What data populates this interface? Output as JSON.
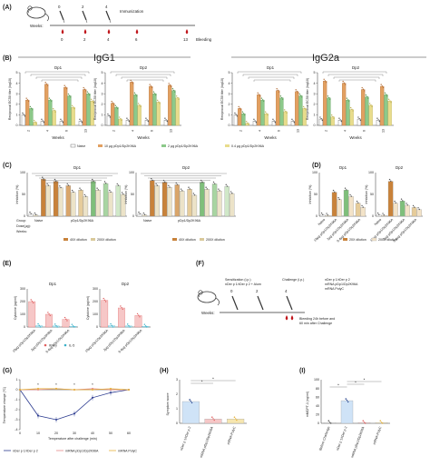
{
  "panelA": {
    "letter": "(A)",
    "weeks_label": "Weeks:",
    "immunization_label": "Immunization",
    "bleeding_label": "Bleeding",
    "immunization_weeks": [
      "0",
      "2",
      "4"
    ],
    "bleeding_weeks": [
      "0",
      "2",
      "4",
      "6",
      "13"
    ]
  },
  "panelB": {
    "letter": "(B)",
    "igg1_title": "IgG1",
    "igg2a_title": "IgG2a",
    "ylabel": "Reciprocal EC50 titer (log10)",
    "xlabel": "Weeks",
    "weeks": [
      "2",
      "4",
      "6",
      "13"
    ],
    "legend": [
      "Naive",
      "10 µg pDp1/Dp2K96A",
      "2 µg pDp1/Dp2K96A",
      "0.4 µg pDp1/Dp2K96A"
    ],
    "subplots": [
      {
        "title": "Dp1",
        "values": [
          [
            1.0,
            2.4,
            1.6,
            0.3
          ],
          [
            0.4,
            3.9,
            2.4,
            1.4
          ],
          [
            0.4,
            3.6,
            2.8,
            1.7
          ],
          [
            0.4,
            3.4,
            3.0,
            2.3
          ]
        ]
      },
      {
        "title": "Dp2",
        "values": [
          [
            0.9,
            2.1,
            1.7,
            0.6
          ],
          [
            0.5,
            4.1,
            2.9,
            1.9
          ],
          [
            0.5,
            3.7,
            3.0,
            2.2
          ],
          [
            0.5,
            3.8,
            3.3,
            2.6
          ]
        ]
      },
      {
        "title": "Dp1",
        "values": [
          [
            1.0,
            1.6,
            1.1,
            0.2
          ],
          [
            0.4,
            2.9,
            2.4,
            1.1
          ],
          [
            0.4,
            3.3,
            2.6,
            1.3
          ],
          [
            0.4,
            3.2,
            2.8,
            1.6
          ]
        ]
      },
      {
        "title": "Dp2",
        "values": [
          [
            0.6,
            4.2,
            2.6,
            0.8
          ],
          [
            0.5,
            4.0,
            2.4,
            1.5
          ],
          [
            0.6,
            3.4,
            2.7,
            1.9
          ],
          [
            0.5,
            3.7,
            2.9,
            2.3
          ]
        ]
      }
    ]
  },
  "panelC": {
    "letter": "(C)",
    "ylabel": "Inhibition (%)",
    "row_labels": [
      "Group:",
      "Dose(µg):",
      "Weeks:"
    ],
    "group_naive": "Naive",
    "group_vaccine": "pDp1/Dp2K96A",
    "legend": [
      "40X dilution",
      "200X dilution"
    ],
    "subplots": [
      {
        "title": "Dp1",
        "values": [
          [
            5,
            3
          ],
          [
            85,
            70
          ],
          [
            80,
            65
          ],
          [
            70,
            55
          ],
          [
            60,
            45
          ],
          [
            80,
            60
          ],
          [
            75,
            55
          ],
          [
            70,
            50
          ]
        ]
      },
      {
        "title": "Dp2",
        "values": [
          [
            5,
            3
          ],
          [
            82,
            70
          ],
          [
            78,
            66
          ],
          [
            72,
            58
          ],
          [
            62,
            48
          ],
          [
            78,
            62
          ],
          [
            74,
            58
          ],
          [
            68,
            52
          ]
        ]
      }
    ]
  },
  "panelD": {
    "letter": "(D)",
    "ylabel": "Inhibition (%)",
    "legend": [
      "20X dilution",
      "200X dilution"
    ],
    "categories": [
      "Naive",
      "10µg pDp1/Dp2K96A",
      "2µg pDp1/Dp2K96A",
      "0.4µg pDp1/Dp2K96A"
    ],
    "subplots": [
      {
        "title": "Dp1",
        "values": [
          [
            3,
            2
          ],
          [
            55,
            38
          ],
          [
            60,
            45
          ],
          [
            30,
            20
          ]
        ]
      },
      {
        "title": "Dp2",
        "values": [
          [
            3,
            2
          ],
          [
            80,
            30
          ],
          [
            35,
            25
          ],
          [
            20,
            15
          ]
        ]
      }
    ]
  },
  "panelE": {
    "letter": "(E)",
    "ylabel": "Cytokine (pg/ml)",
    "legend": [
      "IFN-γ",
      "IL-5"
    ],
    "categories": [
      "10µg pDp1/Dp2K96A",
      "2µg pDp1/Dp2K96A",
      "0.4µg pDp1/Dp2K96A"
    ],
    "subplots": [
      {
        "title": "Dp1",
        "values": [
          [
            200,
            10
          ],
          [
            100,
            8
          ],
          [
            60,
            6
          ]
        ]
      },
      {
        "title": "Dp2",
        "values": [
          [
            210,
            10
          ],
          [
            150,
            8
          ],
          [
            90,
            6
          ]
        ]
      }
    ]
  },
  "panelF": {
    "letter": "(F)",
    "weeks_label": "Weeks:",
    "sensitization": "Sensitization (i.p.)",
    "sensitization_sub": "nDer p 1/rDer p 2 + Alum",
    "challenge": "Challenge (i.p.)",
    "challenge_list": [
      "nDer p 1/rDer p 2",
      "mRNA pDp1/Dp2K96A",
      "mRNA PolyC"
    ],
    "ticks": [
      "0",
      "2",
      "4"
    ],
    "bleeding_note_1": "Bleeding 24h before and",
    "bleeding_note_2": "60 min after Challenge"
  },
  "panelG": {
    "letter": "(G)",
    "ylabel": "Temperature change (°C)",
    "xlabel": "Temperature after challenge (min)",
    "legend": [
      "nDer p 1/rDer p 2",
      "mRNA pDp1/Dp2K96A",
      "mRNA PolyC"
    ],
    "colors": [
      "#2b3a8f",
      "#e58a8a",
      "#e6b23a"
    ],
    "chart_data": {
      "type": "line",
      "x": [
        0,
        10,
        20,
        30,
        40,
        50,
        60
      ],
      "series": [
        {
          "name": "nDer p 1/rDer p 2",
          "values": [
            0.0,
            -2.6,
            -3.0,
            -2.4,
            -0.8,
            -0.3,
            0.0
          ]
        },
        {
          "name": "mRNA pDp1/Dp2K96A",
          "values": [
            0.0,
            0.0,
            0.1,
            0.0,
            0.1,
            0.0,
            0.0
          ]
        },
        {
          "name": "mRNA PolyC",
          "values": [
            0.0,
            0.1,
            0.1,
            0.0,
            0.0,
            0.1,
            0.0
          ]
        }
      ],
      "ylim": [
        -4,
        1
      ],
      "yticks": [
        "1",
        "0",
        "-1",
        "-2",
        "-3",
        "-4"
      ],
      "xticks": [
        "0",
        "10",
        "20",
        "30",
        "40",
        "50",
        "60"
      ]
    }
  },
  "panelH": {
    "letter": "(H)",
    "ylabel": "Symptom score",
    "yticks": [
      "0",
      "1",
      "2",
      "3"
    ],
    "chart_data": {
      "type": "bar",
      "categories": [
        "nDer p 1/rDer p 2",
        "mRNA pDp1/Dp2K96A",
        "mRNA PolyC"
      ],
      "values": [
        1.5,
        0.3,
        0.3
      ],
      "ylim": [
        0,
        3
      ]
    }
  },
  "panelI": {
    "letter": "(I)",
    "ylabel": "mMCPT-1 (ng/ml)",
    "yticks": [
      "0",
      "20",
      "40",
      "60",
      "80",
      "100"
    ],
    "chart_data": {
      "type": "bar",
      "categories": [
        "Before Challenge",
        "nDer p 1/rDer p 2",
        "mRNA pDp1/Dp2K96A",
        "mRNA PolyC"
      ],
      "values": [
        1,
        52,
        1,
        1
      ],
      "ylim": [
        0,
        100
      ]
    }
  }
}
